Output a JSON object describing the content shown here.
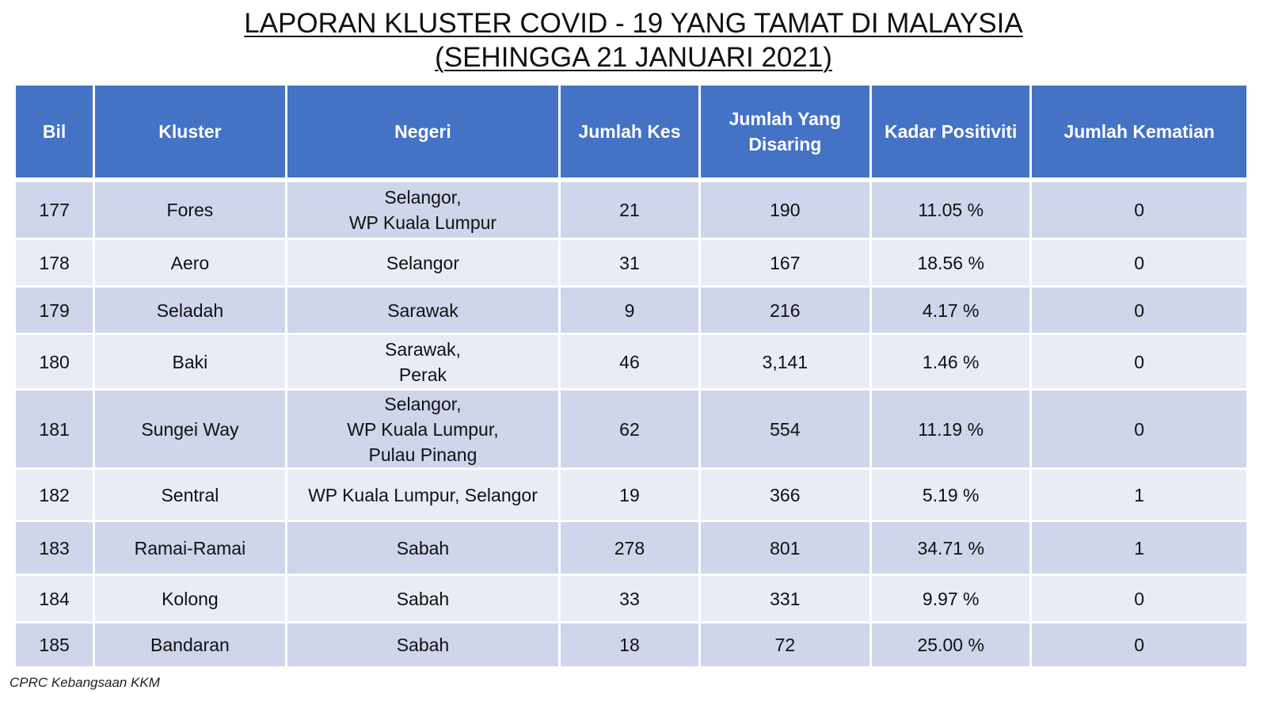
{
  "title": {
    "line1": "LAPORAN KLUSTER COVID - 19 YANG TAMAT DI MALAYSIA",
    "line2": "(SEHINGGA 21 JANUARI 2021)"
  },
  "table": {
    "headers": {
      "bil": "Bil",
      "kluster": "Kluster",
      "negeri": "Negeri",
      "jumlah_kes": "Jumlah Kes",
      "jumlah_disaring": "Jumlah Yang Disaring",
      "kadar_positiviti": "Kadar Positiviti",
      "jumlah_kematian": "Jumlah Kematian"
    },
    "rows": [
      {
        "bil": "177",
        "kluster": "Fores",
        "negeri": [
          "Selangor,",
          "WP Kuala Lumpur"
        ],
        "kes": "21",
        "disaring": "190",
        "positiviti": "11.05 %",
        "kematian": "0"
      },
      {
        "bil": "178",
        "kluster": "Aero",
        "negeri": [
          "Selangor"
        ],
        "kes": "31",
        "disaring": "167",
        "positiviti": "18.56 %",
        "kematian": "0"
      },
      {
        "bil": "179",
        "kluster": "Seladah",
        "negeri": [
          "Sarawak"
        ],
        "kes": "9",
        "disaring": "216",
        "positiviti": "4.17 %",
        "kematian": "0"
      },
      {
        "bil": "180",
        "kluster": "Baki",
        "negeri": [
          "Sarawak,",
          "Perak"
        ],
        "kes": "46",
        "disaring": "3,141",
        "positiviti": "1.46 %",
        "kematian": "0"
      },
      {
        "bil": "181",
        "kluster": "Sungei Way",
        "negeri": [
          "Selangor,",
          "WP Kuala Lumpur,",
          "Pulau Pinang"
        ],
        "kes": "62",
        "disaring": "554",
        "positiviti": "11.19 %",
        "kematian": "0"
      },
      {
        "bil": "182",
        "kluster": "Sentral",
        "negeri": [
          "WP Kuala Lumpur, Selangor"
        ],
        "kes": "19",
        "disaring": "366",
        "positiviti": "5.19 %",
        "kematian": "1"
      },
      {
        "bil": "183",
        "kluster": "Ramai-Ramai",
        "negeri": [
          "Sabah"
        ],
        "kes": "278",
        "disaring": "801",
        "positiviti": "34.71 %",
        "kematian": "1"
      },
      {
        "bil": "184",
        "kluster": "Kolong",
        "negeri": [
          "Sabah"
        ],
        "kes": "33",
        "disaring": "331",
        "positiviti": "9.97 %",
        "kematian": "0"
      },
      {
        "bil": "185",
        "kluster": "Bandaran",
        "negeri": [
          "Sabah"
        ],
        "kes": "18",
        "disaring": "72",
        "positiviti": "25.00 %",
        "kematian": "0"
      }
    ]
  },
  "footer": {
    "source": "CPRC Kebangsaan KKM"
  },
  "colors": {
    "header_bg": "#4472c4",
    "row_odd": "#cfd5ea",
    "row_even": "#e9ebf5"
  }
}
